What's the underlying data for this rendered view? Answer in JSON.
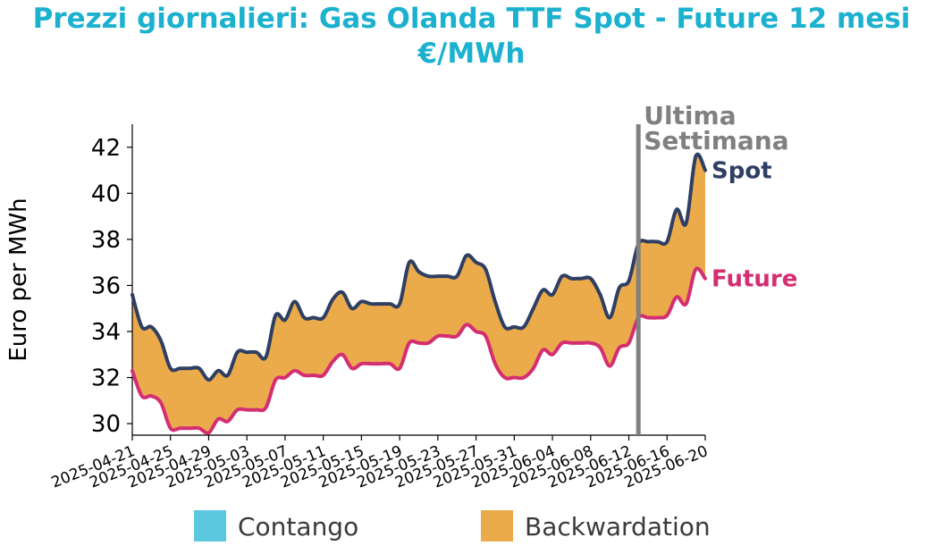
{
  "chart_data": {
    "type": "area",
    "title": "Prezzi giornalieri: Gas Olanda TTF Spot - Future 12 mesi",
    "subtitle": "€/MWh",
    "ylabel": "Euro per MWh",
    "xlabel": "",
    "ylim": [
      29.5,
      43.0
    ],
    "y_ticks": [
      30,
      32,
      34,
      36,
      38,
      40,
      42
    ],
    "x_range": [
      "2025-04-21",
      "2025-06-20"
    ],
    "x_ticks": [
      "2025-04-21",
      "2025-04-25",
      "2025-04-29",
      "2025-05-03",
      "2025-05-07",
      "2025-05-11",
      "2025-05-15",
      "2025-05-19",
      "2025-05-23",
      "2025-05-27",
      "2025-05-31",
      "2025-06-04",
      "2025-06-08",
      "2025-06-12",
      "2025-06-16",
      "2025-06-20"
    ],
    "series": [
      {
        "name": "Spot",
        "color": "#2e3f63",
        "x": [
          "2025-04-21",
          "2025-04-22",
          "2025-04-23",
          "2025-04-24",
          "2025-04-25",
          "2025-04-26",
          "2025-04-27",
          "2025-04-28",
          "2025-04-29",
          "2025-04-30",
          "2025-05-01",
          "2025-05-02",
          "2025-05-03",
          "2025-05-04",
          "2025-05-05",
          "2025-05-06",
          "2025-05-07",
          "2025-05-08",
          "2025-05-09",
          "2025-05-10",
          "2025-05-11",
          "2025-05-12",
          "2025-05-13",
          "2025-05-14",
          "2025-05-15",
          "2025-05-16",
          "2025-05-17",
          "2025-05-18",
          "2025-05-19",
          "2025-05-20",
          "2025-05-21",
          "2025-05-22",
          "2025-05-23",
          "2025-05-24",
          "2025-05-25",
          "2025-05-26",
          "2025-05-27",
          "2025-05-28",
          "2025-05-29",
          "2025-05-30",
          "2025-05-31",
          "2025-06-01",
          "2025-06-02",
          "2025-06-03",
          "2025-06-04",
          "2025-06-05",
          "2025-06-06",
          "2025-06-07",
          "2025-06-08",
          "2025-06-09",
          "2025-06-10",
          "2025-06-11",
          "2025-06-12",
          "2025-06-13",
          "2025-06-14",
          "2025-06-15",
          "2025-06-16",
          "2025-06-17",
          "2025-06-18",
          "2025-06-19",
          "2025-06-20"
        ],
        "values": [
          35.6,
          34.2,
          34.2,
          33.6,
          32.4,
          32.4,
          32.4,
          32.4,
          31.9,
          32.3,
          32.1,
          33.1,
          33.1,
          33.1,
          32.9,
          34.7,
          34.5,
          35.3,
          34.6,
          34.6,
          34.6,
          35.4,
          35.7,
          35.0,
          35.3,
          35.2,
          35.2,
          35.2,
          35.2,
          37.0,
          36.6,
          36.4,
          36.4,
          36.4,
          36.4,
          37.3,
          37.0,
          36.7,
          35.3,
          34.2,
          34.2,
          34.2,
          35.0,
          35.8,
          35.6,
          36.4,
          36.3,
          36.3,
          36.3,
          35.6,
          34.6,
          35.9,
          36.2,
          37.8,
          37.9,
          37.9,
          37.9,
          39.3,
          38.7,
          41.6,
          41.0
        ]
      },
      {
        "name": "Future",
        "color": "#d42e72",
        "x": [
          "2025-04-21",
          "2025-04-22",
          "2025-04-23",
          "2025-04-24",
          "2025-04-25",
          "2025-04-26",
          "2025-04-27",
          "2025-04-28",
          "2025-04-29",
          "2025-04-30",
          "2025-05-01",
          "2025-05-02",
          "2025-05-03",
          "2025-05-04",
          "2025-05-05",
          "2025-05-06",
          "2025-05-07",
          "2025-05-08",
          "2025-05-09",
          "2025-05-10",
          "2025-05-11",
          "2025-05-12",
          "2025-05-13",
          "2025-05-14",
          "2025-05-15",
          "2025-05-16",
          "2025-05-17",
          "2025-05-18",
          "2025-05-19",
          "2025-05-20",
          "2025-05-21",
          "2025-05-22",
          "2025-05-23",
          "2025-05-24",
          "2025-05-25",
          "2025-05-26",
          "2025-05-27",
          "2025-05-28",
          "2025-05-29",
          "2025-05-30",
          "2025-05-31",
          "2025-06-01",
          "2025-06-02",
          "2025-06-03",
          "2025-06-04",
          "2025-06-05",
          "2025-06-06",
          "2025-06-07",
          "2025-06-08",
          "2025-06-09",
          "2025-06-10",
          "2025-06-11",
          "2025-06-12",
          "2025-06-13",
          "2025-06-14",
          "2025-06-15",
          "2025-06-16",
          "2025-06-17",
          "2025-06-18",
          "2025-06-19",
          "2025-06-20"
        ],
        "values": [
          32.3,
          31.2,
          31.2,
          30.9,
          29.8,
          29.8,
          29.8,
          29.8,
          29.6,
          30.2,
          30.1,
          30.6,
          30.6,
          30.6,
          30.7,
          31.9,
          32.0,
          32.3,
          32.1,
          32.1,
          32.1,
          32.7,
          33.0,
          32.4,
          32.6,
          32.6,
          32.6,
          32.6,
          32.4,
          33.5,
          33.5,
          33.5,
          33.8,
          33.8,
          33.8,
          34.3,
          34.0,
          33.8,
          32.6,
          32.0,
          32.0,
          32.0,
          32.4,
          33.2,
          33.0,
          33.5,
          33.5,
          33.5,
          33.5,
          33.3,
          32.5,
          33.3,
          33.5,
          34.6,
          34.6,
          34.6,
          34.7,
          35.5,
          35.2,
          36.7,
          36.3
        ]
      }
    ],
    "annotation": {
      "date": "2025-06-13",
      "label_line1": "Ultima",
      "label_line2": "Settimana",
      "color": "#808080"
    },
    "legend": {
      "placement": "bottom",
      "items": [
        {
          "label": "Contango",
          "color": "#5bc8df"
        },
        {
          "label": "Backwardation",
          "color": "#ebab4b"
        }
      ]
    },
    "end_labels": [
      {
        "series": "Spot",
        "label": "Spot"
      },
      {
        "series": "Future",
        "label": "Future"
      }
    ],
    "grid": false
  }
}
